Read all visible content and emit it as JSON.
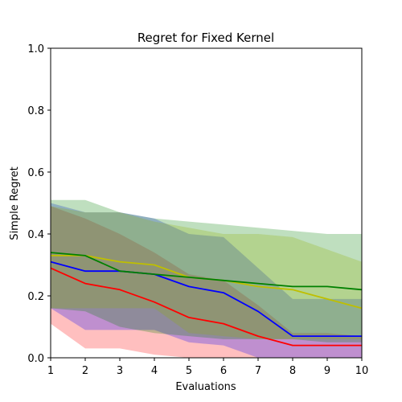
{
  "chart_data": {
    "type": "line",
    "title": "Regret for Fixed Kernel",
    "xlabel": "Evaluations",
    "ylabel": "Simple Regret",
    "xlim": [
      1,
      10
    ],
    "ylim": [
      0,
      1
    ],
    "x": [
      1,
      2,
      3,
      4,
      5,
      6,
      7,
      8,
      9,
      10
    ],
    "xticks": [
      "1",
      "2",
      "3",
      "4",
      "5",
      "6",
      "7",
      "8",
      "9",
      "10"
    ],
    "yticks": [
      "0.0",
      "0.2",
      "0.4",
      "0.6",
      "0.8",
      "1.0"
    ],
    "grid": false,
    "series": [
      {
        "color": "#ff0000",
        "band_color": "#ff0000",
        "values": [
          0.29,
          0.24,
          0.22,
          0.18,
          0.13,
          0.11,
          0.07,
          0.04,
          0.04,
          0.04
        ],
        "lower": [
          0.11,
          0.03,
          0.03,
          0.01,
          0.0,
          0.0,
          0.0,
          0.0,
          0.0,
          0.0
        ],
        "upper": [
          0.49,
          0.45,
          0.4,
          0.34,
          0.27,
          0.25,
          0.17,
          0.08,
          0.08,
          0.07
        ]
      },
      {
        "color": "#0000ff",
        "band_color": "#0000ff",
        "values": [
          0.31,
          0.28,
          0.28,
          0.27,
          0.23,
          0.21,
          0.15,
          0.07,
          0.07,
          0.07
        ],
        "lower": [
          0.16,
          0.09,
          0.09,
          0.09,
          0.05,
          0.04,
          0.0,
          0.0,
          0.0,
          0.0
        ],
        "upper": [
          0.5,
          0.47,
          0.47,
          0.45,
          0.4,
          0.39,
          0.29,
          0.19,
          0.19,
          0.19
        ]
      },
      {
        "color": "#bfbf00",
        "band_color": "#bfbf00",
        "values": [
          0.33,
          0.33,
          0.31,
          0.3,
          0.26,
          0.25,
          0.23,
          0.22,
          0.19,
          0.16
        ],
        "lower": [
          0.16,
          0.16,
          0.16,
          0.16,
          0.08,
          0.07,
          0.06,
          0.06,
          0.06,
          0.06
        ],
        "upper": [
          0.49,
          0.47,
          0.47,
          0.44,
          0.42,
          0.4,
          0.4,
          0.39,
          0.35,
          0.31
        ]
      },
      {
        "color": "#008000",
        "band_color": "#008000",
        "values": [
          0.34,
          0.33,
          0.28,
          0.27,
          0.26,
          0.25,
          0.24,
          0.23,
          0.23,
          0.22
        ],
        "lower": [
          0.16,
          0.15,
          0.1,
          0.08,
          0.07,
          0.06,
          0.06,
          0.06,
          0.05,
          0.05
        ],
        "upper": [
          0.51,
          0.51,
          0.47,
          0.45,
          0.44,
          0.43,
          0.42,
          0.41,
          0.4,
          0.4
        ]
      }
    ]
  }
}
